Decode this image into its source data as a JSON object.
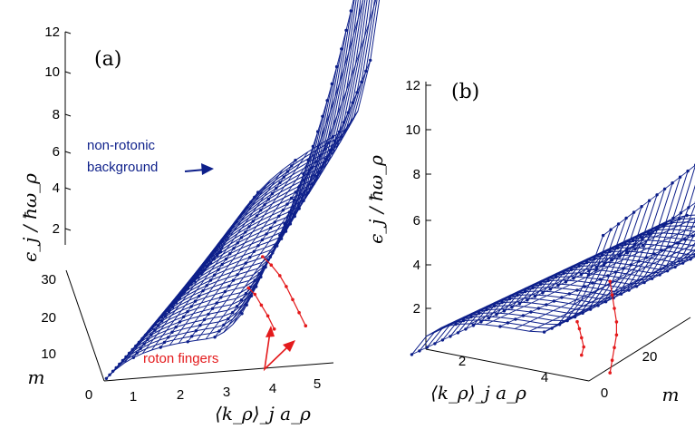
{
  "colors": {
    "background": "#0d1f8a",
    "roton": "#e41a1c",
    "axis": "#000000"
  },
  "chart_data": [
    {
      "type": "line",
      "panel_label": "(a)",
      "projection": "3d",
      "ylabel": "ϵ_j / ħω_ρ",
      "xlabel": "⟨k_ρ⟩_j a_ρ",
      "zlabel": "m",
      "vertical_ticks": [
        "2",
        "4",
        "6",
        "8",
        "10",
        "12"
      ],
      "x_ticks": [
        "0",
        "1",
        "2",
        "3",
        "4",
        "5"
      ],
      "m_ticks": [
        "10",
        "20",
        "30"
      ],
      "vertical_range": [
        0,
        12
      ],
      "x_range": [
        0,
        5.3
      ],
      "m_range": [
        0,
        35
      ],
      "annotations": {
        "background": "non-rotonic\nbackground",
        "roton": "roton fingers"
      },
      "background_series": {
        "name": "non-rotonic background",
        "m_values": [
          0,
          35
        ],
        "count": 36
      },
      "roton_series": [
        {
          "name": "roton finger 1",
          "points": [
            [
              3.2,
              2,
              3.3
            ],
            [
              3.35,
              2,
              3.0
            ],
            [
              3.5,
              2,
              2.5
            ],
            [
              3.65,
              2,
              2.0
            ],
            [
              3.8,
              2,
              1.4
            ]
          ]
        },
        {
          "name": "roton finger 2",
          "points": [
            [
              3.3,
              5,
              4.2
            ],
            [
              3.5,
              5,
              3.8
            ],
            [
              3.7,
              5,
              3.3
            ],
            [
              3.85,
              5,
              2.8
            ],
            [
              4.0,
              5,
              2.2
            ],
            [
              4.15,
              5,
              1.6
            ],
            [
              4.3,
              5,
              1.0
            ]
          ]
        }
      ]
    },
    {
      "type": "line",
      "panel_label": "(b)",
      "projection": "3d",
      "ylabel": "ϵ_j / ħω_ρ",
      "xlabel": "⟨k_ρ⟩_j a_ρ",
      "zlabel": "m",
      "vertical_ticks": [
        "2",
        "4",
        "6",
        "8",
        "10",
        "12"
      ],
      "x_ticks": [
        "2",
        "4"
      ],
      "m_ticks": [
        "0",
        "20"
      ],
      "vertical_range": [
        1,
        12.5
      ],
      "x_range": [
        0.5,
        5
      ],
      "m_range": [
        0,
        30
      ],
      "background_series": {
        "name": "non-rotonic background",
        "m_values": [
          0,
          30
        ],
        "count": 31
      },
      "roton_series": [
        {
          "name": "roton finger 1",
          "points": [
            [
              4.0,
              2,
              3.9
            ],
            [
              4.05,
              2,
              3.6
            ],
            [
              4.1,
              2,
              3.2
            ],
            [
              4.15,
              2,
              2.8
            ],
            [
              4.1,
              2,
              2.4
            ]
          ]
        },
        {
          "name": "roton finger 2",
          "points": [
            [
              4.4,
              4,
              5.6
            ],
            [
              4.45,
              4,
              5.0
            ],
            [
              4.5,
              4,
              4.4
            ],
            [
              4.55,
              4,
              3.8
            ],
            [
              4.55,
              4,
              3.2
            ],
            [
              4.5,
              4,
              2.6
            ],
            [
              4.45,
              4,
              2.0
            ],
            [
              4.4,
              4,
              1.4
            ]
          ]
        }
      ]
    }
  ]
}
